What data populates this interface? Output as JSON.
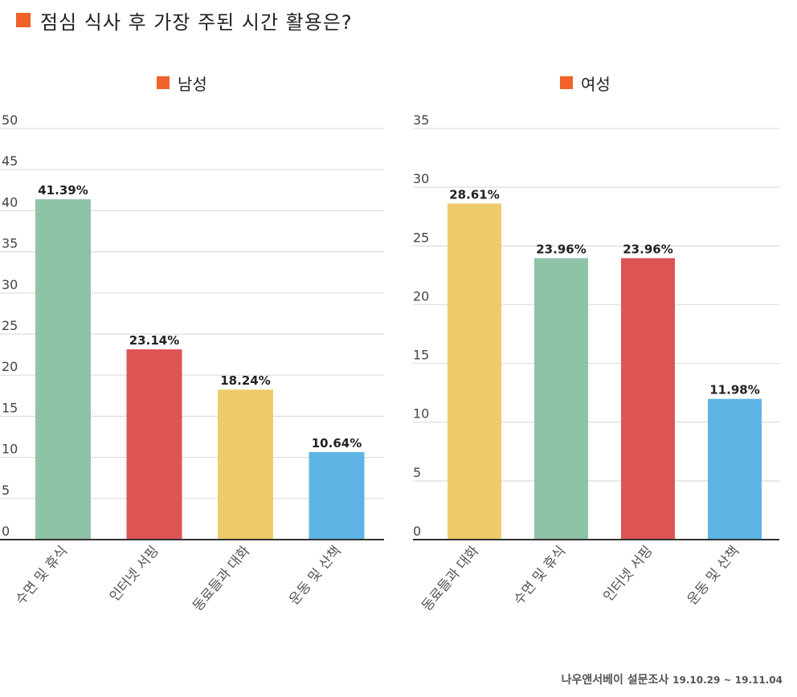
{
  "title": "점심 식사 후 가장 주된 시간 활용은?",
  "accent_color": "#f0622a",
  "footer": {
    "source": "나우앤서베이 설문조사",
    "period": "19.10.29 ~ 19.11.04"
  },
  "chart_data": [
    {
      "type": "bar",
      "title": "남성",
      "categories": [
        "수면 및 휴식",
        "인터넷 서핑",
        "동료들과 대화",
        "운동 및 산책"
      ],
      "values": [
        41.39,
        23.14,
        18.24,
        10.64
      ],
      "labels": [
        "41.39%",
        "23.14%",
        "18.24%",
        "10.64%"
      ],
      "colors": [
        "#8fc3a8",
        "#dc5454",
        "#eecb6a",
        "#5db4e5"
      ],
      "ylim": [
        0,
        50
      ],
      "yticks": [
        0,
        5,
        10,
        15,
        20,
        25,
        30,
        35,
        40,
        45,
        50
      ],
      "grid": true,
      "xlabel": "",
      "ylabel": ""
    },
    {
      "type": "bar",
      "title": "여성",
      "categories": [
        "동료들과 대화",
        "수면 및 휴식",
        "인터넷 서핑",
        "운동 및 산책"
      ],
      "values": [
        28.61,
        23.96,
        23.96,
        11.98
      ],
      "labels": [
        "28.61%",
        "23.96%",
        "23.96%",
        "11.98%"
      ],
      "colors": [
        "#eecb6a",
        "#8fc3a8",
        "#dc5454",
        "#5db4e5"
      ],
      "ylim": [
        0,
        35
      ],
      "yticks": [
        0,
        5,
        10,
        15,
        20,
        25,
        30,
        35
      ],
      "grid": true,
      "xlabel": "",
      "ylabel": ""
    }
  ]
}
